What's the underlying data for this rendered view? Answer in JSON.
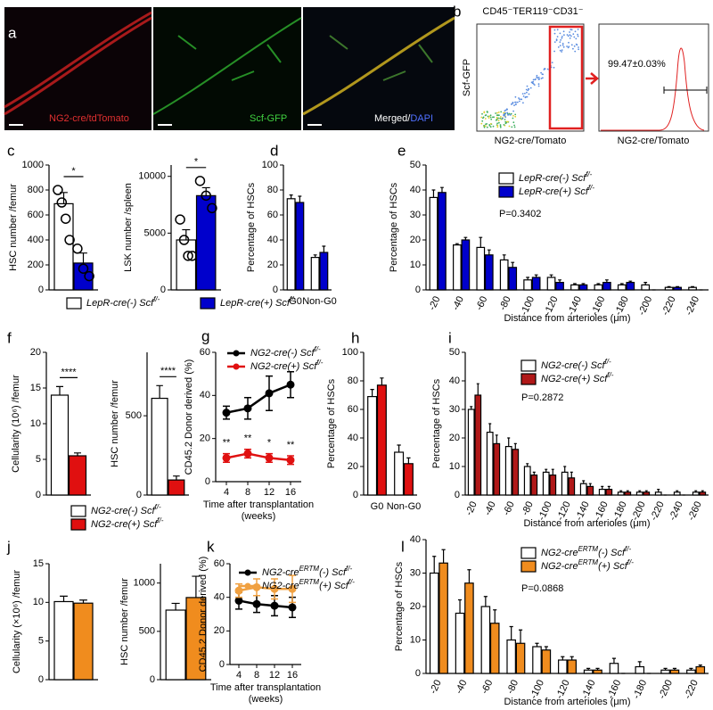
{
  "figure": {
    "panel_labels": [
      "a",
      "b",
      "c",
      "d",
      "e",
      "f",
      "g",
      "h",
      "i",
      "j",
      "k",
      "l"
    ],
    "micrographs": [
      "NG2-cre/tdTomato",
      "Scf-GFP",
      "Merged/",
      "DAPI"
    ],
    "flow": {
      "title": "CD45⁻TER119⁻CD31⁻",
      "ylabel": "Scf-GFP",
      "xlabel": "NG2-cre/Tomato",
      "histogram_xlabel": "NG2-cre/Tomato",
      "gate_value": "99.47±0.03%"
    }
  },
  "chart_data": [
    {
      "type": "bar",
      "ylabel": "HSC number /femur",
      "categories": [
        null
      ],
      "ylim": [
        0,
        1000
      ],
      "yticks": [
        0,
        200,
        400,
        600,
        800,
        1000
      ],
      "significance": "*",
      "series": [
        {
          "name": [
            "LepR-cre(-) Scf",
            "f/-"
          ],
          "color": "#ffffff",
          "values": [
            690
          ],
          "errors": [
            90
          ],
          "points": [
            [
              800,
              700,
              570,
              400
            ]
          ]
        },
        {
          "name": [
            "LepR-cre(+) Scf",
            "f/-"
          ],
          "color": "#0000cc",
          "values": [
            215
          ],
          "errors": [
            80
          ],
          "points": [
            [
              330,
              170,
              110
            ]
          ]
        }
      ]
    },
    {
      "type": "bar",
      "ylabel": "LSK number /spleen",
      "categories": [
        null
      ],
      "ylim": [
        0,
        11000
      ],
      "yticks": [
        0,
        5000,
        10000
      ],
      "significance": "*",
      "series": [
        {
          "color": "#ffffff",
          "values": [
            4400
          ],
          "errors": [
            900
          ],
          "points": [
            [
              6200,
              4400,
              3000,
              3000
            ]
          ]
        },
        {
          "color": "#0000cc",
          "values": [
            8300
          ],
          "errors": [
            700
          ],
          "points": [
            [
              9600,
              8300,
              7200
            ]
          ]
        }
      ]
    },
    {
      "type": "bar",
      "ylabel": "Percentage of HSCs",
      "categories": [
        "G0",
        "Non-G0"
      ],
      "ylim": [
        0,
        100
      ],
      "yticks": [
        0,
        20,
        40,
        60,
        80,
        100
      ],
      "series": [
        {
          "color": "#ffffff",
          "values": [
            73,
            26
          ],
          "errors": [
            3,
            2
          ]
        },
        {
          "color": "#0000cc",
          "values": [
            70,
            30
          ],
          "errors": [
            5,
            5
          ]
        }
      ]
    },
    {
      "type": "bar",
      "ylabel": "Percentage of HSCs",
      "xlabel": "Distance from arterioles (μm)",
      "p_value": "P=0.3402",
      "categories": [
        "-20",
        "-40",
        "-60",
        "-80",
        "-100",
        "-120",
        "-140",
        "-160",
        "-180",
        "-200",
        "-220",
        "-240"
      ],
      "ylim": [
        0,
        50
      ],
      "yticks": [
        0,
        10,
        20,
        30,
        40,
        50
      ],
      "series": [
        {
          "name": [
            "LepR-cre(-) Scf",
            "f/-"
          ],
          "color": "#ffffff",
          "values": [
            37,
            18,
            17,
            12,
            4,
            5,
            2,
            2,
            2,
            2,
            1,
            1
          ],
          "errors": [
            3,
            0.5,
            4,
            2,
            1,
            1,
            0.5,
            0.5,
            0.5,
            1,
            0.3,
            0.3
          ]
        },
        {
          "name": [
            "LepR-cre(+) Scf",
            "f/-"
          ],
          "color": "#0000cc",
          "values": [
            39,
            20,
            14,
            9,
            5,
            3,
            2,
            3,
            3,
            0,
            1,
            0
          ],
          "errors": [
            2,
            1,
            2,
            2,
            1,
            1,
            0.5,
            1,
            0.5,
            0,
            0.3,
            0
          ]
        }
      ]
    },
    {
      "type": "bar",
      "ylabel": "Cellularity (10⁶) /femur",
      "categories": [
        null
      ],
      "ylim": [
        0,
        20
      ],
      "yticks": [
        0,
        5,
        10,
        15,
        20
      ],
      "significance": "****",
      "series": [
        {
          "name": [
            "NG2-cre(-) Scf",
            "f/-"
          ],
          "color": "#ffffff",
          "values": [
            14
          ],
          "errors": [
            1.2
          ]
        },
        {
          "name": [
            "NG2-cre(+) Scf",
            "f/-"
          ],
          "color": "#e01010",
          "values": [
            5.5
          ],
          "errors": [
            0.4
          ]
        }
      ]
    },
    {
      "type": "bar",
      "ylabel": "HSC number /femur",
      "categories": [
        null
      ],
      "ylim": [
        0,
        900
      ],
      "yticks": [
        0,
        500
      ],
      "significance": "****",
      "series": [
        {
          "color": "#ffffff",
          "values": [
            610
          ],
          "errors": [
            80
          ]
        },
        {
          "color": "#e01010",
          "values": [
            95
          ],
          "errors": [
            25
          ]
        }
      ]
    },
    {
      "type": "line",
      "ylabel": "CD45.2 Donor derived (%)",
      "xlabel": [
        "Time after transplantation",
        "(weeks)"
      ],
      "x": [
        4,
        8,
        12,
        16
      ],
      "xlim": [
        2,
        18
      ],
      "xticks": [
        4,
        8,
        12,
        16
      ],
      "ylim": [
        0,
        60
      ],
      "yticks": [
        0,
        20,
        40,
        60
      ],
      "annotations": [
        "**",
        "**",
        "*",
        "**"
      ],
      "series": [
        {
          "name": [
            "NG2-cre(-) Scf",
            "f/-"
          ],
          "color": "#000000",
          "values": [
            32,
            34,
            41,
            45
          ],
          "errors": [
            3,
            5,
            8,
            6
          ]
        },
        {
          "name": [
            "NG2-cre(+) Scf",
            "f/-"
          ],
          "color": "#e01010",
          "values": [
            11,
            13,
            11,
            10
          ],
          "errors": [
            2,
            2,
            2,
            2
          ]
        }
      ]
    },
    {
      "type": "bar",
      "ylabel": "Percentage of HSCs",
      "categories": [
        "G0",
        "Non-G0"
      ],
      "ylim": [
        0,
        100
      ],
      "yticks": [
        0,
        20,
        40,
        60,
        80,
        100
      ],
      "series": [
        {
          "color": "#ffffff",
          "values": [
            69,
            30
          ],
          "errors": [
            5,
            5
          ]
        },
        {
          "color": "#e01010",
          "values": [
            77,
            22
          ],
          "errors": [
            5,
            4
          ]
        }
      ]
    },
    {
      "type": "bar",
      "ylabel": "Percentage of HSCs",
      "xlabel": "Distance from arterioles (μm)",
      "p_value": "P=0.2872",
      "categories": [
        "-20",
        "-40",
        "-60",
        "-80",
        "-100",
        "-120",
        "-140",
        "-160",
        "-180",
        "-200",
        "-220",
        "-240",
        "-260"
      ],
      "ylim": [
        0,
        50
      ],
      "yticks": [
        0,
        10,
        20,
        30,
        40,
        50
      ],
      "series": [
        {
          "name": [
            "NG2-cre(-) Scf",
            "f/-"
          ],
          "color": "#ffffff",
          "values": [
            30,
            22,
            17,
            10,
            8,
            8,
            4,
            2,
            1,
            1,
            1,
            1,
            1
          ],
          "errors": [
            1,
            3,
            3,
            1,
            1,
            2,
            1,
            1,
            0.5,
            0.5,
            1,
            0.5,
            0.5
          ]
        },
        {
          "name": [
            "NG2-cre(+) Scf",
            "f/-"
          ],
          "color": "#b01818",
          "values": [
            35,
            18,
            16,
            7,
            7,
            6,
            3,
            2,
            1,
            1,
            0,
            0,
            1
          ],
          "errors": [
            4,
            3,
            2,
            1,
            2,
            2,
            1,
            1,
            0.5,
            0.5,
            0,
            0,
            0.5
          ]
        }
      ]
    },
    {
      "type": "bar",
      "ylabel": "Cellularity (×10⁶) /femur",
      "categories": [
        null
      ],
      "ylim": [
        0,
        15
      ],
      "yticks": [
        0,
        5,
        10,
        15
      ],
      "series": [
        {
          "color": "#ffffff",
          "values": [
            10.1
          ],
          "errors": [
            0.7
          ]
        },
        {
          "color": "#f08c1e",
          "values": [
            9.9
          ],
          "errors": [
            0.4
          ]
        }
      ]
    },
    {
      "type": "bar",
      "ylabel": "HSC number /femur",
      "categories": [
        null
      ],
      "ylim": [
        0,
        1200
      ],
      "yticks": [
        0,
        500,
        1000
      ],
      "series": [
        {
          "color": "#ffffff",
          "values": [
            720
          ],
          "errors": [
            70
          ]
        },
        {
          "color": "#f08c1e",
          "values": [
            850
          ],
          "errors": [
            220
          ]
        }
      ]
    },
    {
      "type": "line",
      "ylabel": "CD45.2 Donor derived (%)",
      "xlabel": [
        "Time after transplantation",
        "(weeks)"
      ],
      "x": [
        4,
        8,
        12,
        16
      ],
      "xlim": [
        2,
        18
      ],
      "xticks": [
        4,
        8,
        12,
        16
      ],
      "ylim": [
        0,
        60
      ],
      "yticks": [
        0,
        20,
        40,
        60
      ],
      "series": [
        {
          "name": [
            "NG2-cre",
            "ERTM",
            "(-) Scf",
            "f/-"
          ],
          "color": "#000000",
          "values": [
            38,
            36,
            35,
            34
          ],
          "errors": [
            5,
            5,
            6,
            6
          ]
        },
        {
          "name": [
            "NG2-cre",
            "ERTM",
            "(+) Scf",
            "f/-"
          ],
          "color": "#f0a040",
          "values": [
            44,
            46,
            45,
            45
          ],
          "errors": [
            4,
            5,
            6,
            8
          ]
        }
      ]
    },
    {
      "type": "bar",
      "ylabel": "Percentage of HSCs",
      "xlabel": "Distance from arterioles (μm)",
      "p_value": "P=0.0868",
      "categories": [
        "-20",
        "-40",
        "-60",
        "-80",
        "-100",
        "-120",
        "-140",
        "-160",
        "-180",
        "-200",
        "-220"
      ],
      "ylim": [
        0,
        40
      ],
      "yticks": [
        0,
        10,
        20,
        30,
        40
      ],
      "series": [
        {
          "name": [
            "NG2-cre",
            "ERTM",
            "(-) Scf",
            "f/-"
          ],
          "color": "#ffffff",
          "values": [
            30,
            18,
            20,
            10,
            8,
            4,
            1,
            3,
            2,
            1,
            1
          ],
          "errors": [
            5,
            4,
            3,
            4,
            1,
            1,
            0.5,
            1.5,
            1.5,
            0.5,
            0.5
          ]
        },
        {
          "name": [
            "NG2-cre",
            "ERTM",
            "(+) Scf",
            "f/-"
          ],
          "color": "#f08c1e",
          "values": [
            33,
            27,
            15,
            9,
            7,
            4,
            1,
            0,
            0,
            1,
            2
          ],
          "errors": [
            4,
            4,
            4,
            4,
            1,
            1,
            0.5,
            0,
            0,
            0.5,
            0.5
          ]
        }
      ]
    }
  ]
}
